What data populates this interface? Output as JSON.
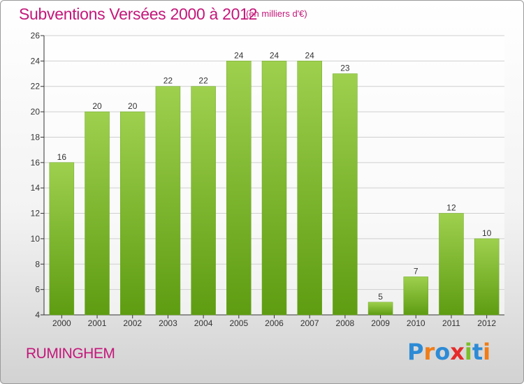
{
  "chart_data": {
    "type": "bar",
    "title": "Subventions Versées 2000 à 2012",
    "subtitle": "(en milliers d'€)",
    "categories": [
      "2000",
      "2001",
      "2002",
      "2003",
      "2004",
      "2005",
      "2006",
      "2007",
      "2008",
      "2009",
      "2010",
      "2011",
      "2012"
    ],
    "values": [
      16,
      20,
      20,
      22,
      22,
      24,
      24,
      24,
      23,
      5,
      7,
      12,
      10
    ],
    "ylim": [
      4,
      26
    ],
    "yticks": [
      4,
      6,
      8,
      10,
      12,
      14,
      16,
      18,
      20,
      22,
      24,
      26
    ],
    "grid": true,
    "bar_color": "#7cbe2a"
  },
  "footer": {
    "commune": "RUMINGHEM",
    "logo": "Proxiti",
    "logo_colors": [
      "#2d8bd6",
      "#f07d18",
      "#2d8bd6",
      "#e62b2b",
      "#7cbe2a",
      "#2d8bd6",
      "#f07d18"
    ]
  }
}
